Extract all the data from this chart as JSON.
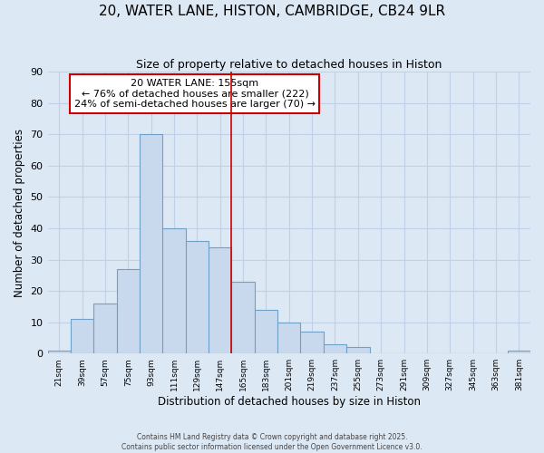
{
  "title": "20, WATER LANE, HISTON, CAMBRIDGE, CB24 9LR",
  "subtitle": "Size of property relative to detached houses in Histon",
  "xlabel": "Distribution of detached houses by size in Histon",
  "ylabel": "Number of detached properties",
  "bin_labels": [
    "21sqm",
    "39sqm",
    "57sqm",
    "75sqm",
    "93sqm",
    "111sqm",
    "129sqm",
    "147sqm",
    "165sqm",
    "183sqm",
    "201sqm",
    "219sqm",
    "237sqm",
    "255sqm",
    "273sqm",
    "291sqm",
    "309sqm",
    "327sqm",
    "345sqm",
    "363sqm",
    "381sqm"
  ],
  "bar_heights": [
    1,
    11,
    16,
    27,
    70,
    40,
    36,
    34,
    23,
    14,
    10,
    7,
    3,
    2,
    0,
    0,
    0,
    0,
    0,
    0,
    1
  ],
  "bar_color": "#c8d9ed",
  "bar_edge_color": "#6ea0c8",
  "vline_x": 8.0,
  "vline_color": "#cc0000",
  "annotation_title": "20 WATER LANE: 155sqm",
  "annotation_line1": "← 76% of detached houses are smaller (222)",
  "annotation_line2": "24% of semi-detached houses are larger (70) →",
  "annotation_box_color": "#ffffff",
  "annotation_box_edge": "#cc0000",
  "ylim": [
    0,
    90
  ],
  "yticks": [
    0,
    10,
    20,
    30,
    40,
    50,
    60,
    70,
    80,
    90
  ],
  "footnote1": "Contains HM Land Registry data © Crown copyright and database right 2025.",
  "footnote2": "Contains public sector information licensed under the Open Government Licence v3.0.",
  "background_color": "#dde8f5",
  "grid_color": "#c0d0e8",
  "title_fontsize": 11,
  "subtitle_fontsize": 9,
  "annotation_fontsize": 8
}
